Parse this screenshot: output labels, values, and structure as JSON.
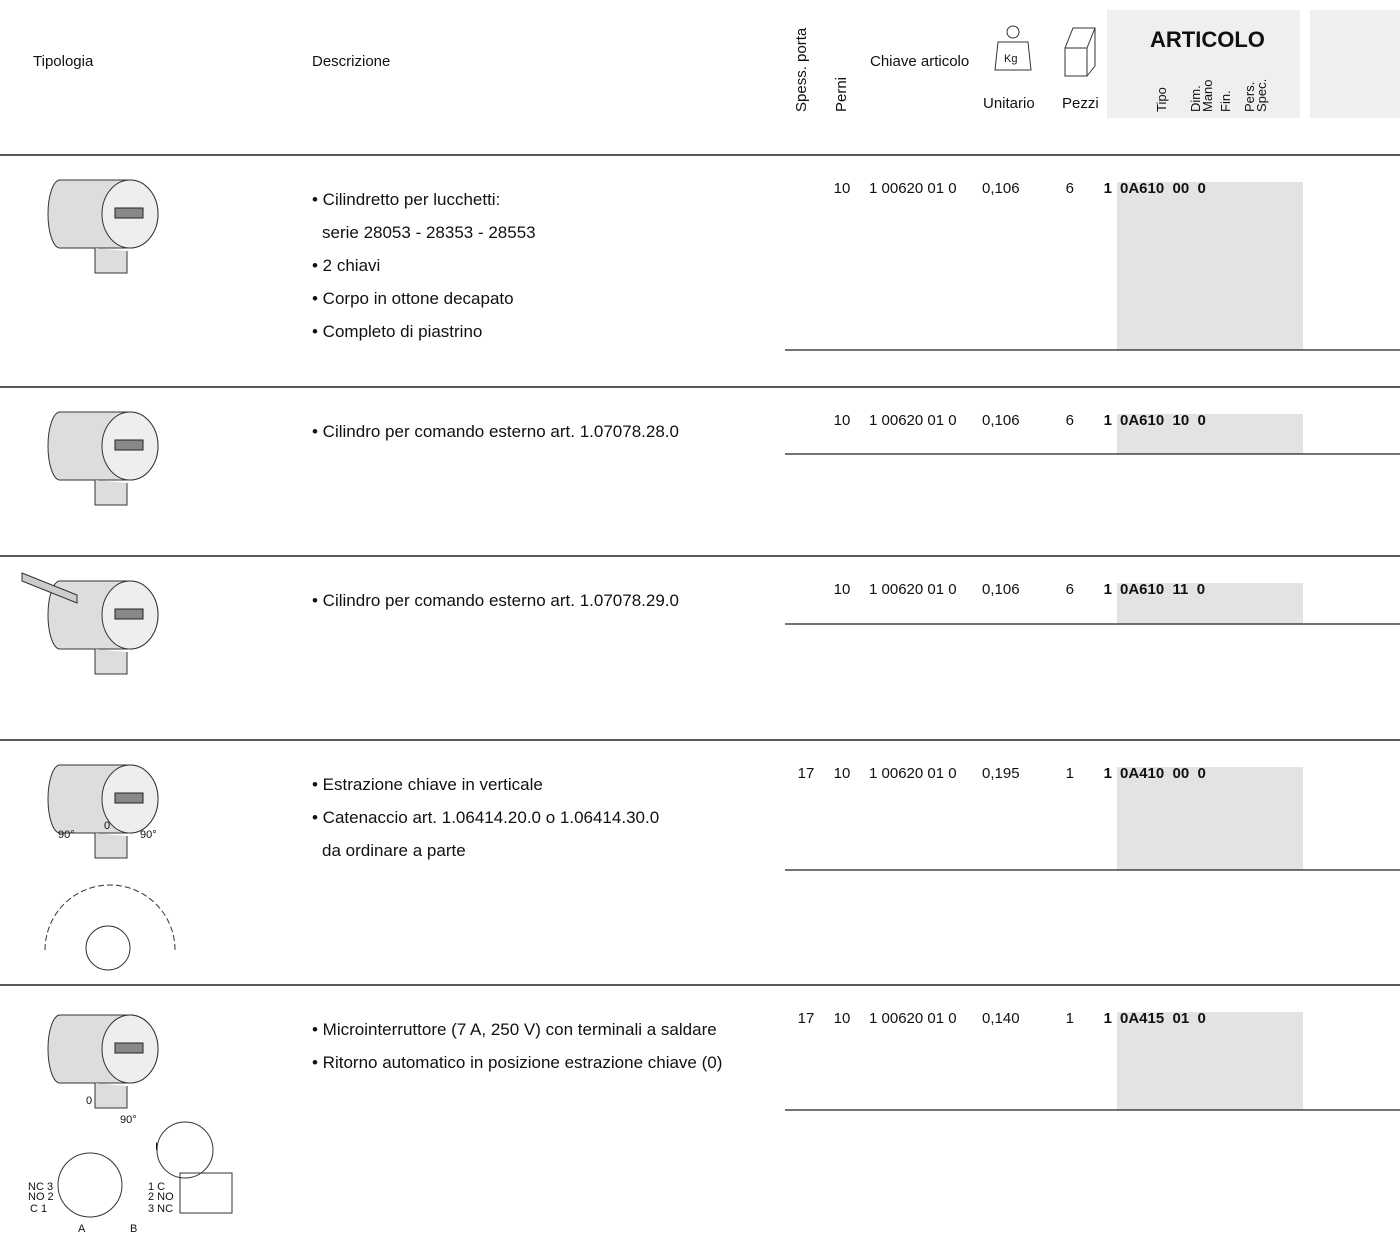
{
  "header": {
    "tipologia": "Tipologia",
    "descrizione": "Descrizione",
    "spess_porta": "Spess. porta",
    "perni": "Perni",
    "chiave_articolo": "Chiave articolo",
    "kg_icon": "Kg",
    "unitario": "Unitario",
    "pezzi": "Pezzi",
    "articolo": "ARTICOLO",
    "tipo": "Tipo",
    "dim": "Dim.",
    "mano": "Mano",
    "fin": "Fin.",
    "pers": "Pers.",
    "spec": "Spec."
  },
  "rows": [
    {
      "description": [
        "• Cilindretto per lucchetti:",
        "serie 28053 - 28353 - 28553",
        "• 2 chiavi",
        "• Corpo in ottone decapato",
        "• Completo di piastrino"
      ],
      "spess_porta": null,
      "perni": "10",
      "chiave_articolo": "1 00620 01 0",
      "unitario": "0,106",
      "pezzi": "6",
      "qty": "1",
      "code": "0A610  00  0",
      "figure_labels": []
    },
    {
      "description": [
        "• Cilindro per comando esterno art. 1.07078.28.0"
      ],
      "spess_porta": null,
      "perni": "10",
      "chiave_articolo": "1 00620 01 0",
      "unitario": "0,106",
      "pezzi": "6",
      "qty": "1",
      "code": "0A610  10  0",
      "figure_labels": []
    },
    {
      "description": [
        "• Cilindro per comando esterno art. 1.07078.29.0"
      ],
      "spess_porta": null,
      "perni": "10",
      "chiave_articolo": "1 00620 01 0",
      "unitario": "0,106",
      "pezzi": "6",
      "qty": "1",
      "code": "0A610  11  0",
      "figure_labels": []
    },
    {
      "description": [
        "• Estrazione chiave in verticale",
        "• Catenaccio art. 1.06414.20.0 o 1.06414.30.0",
        "da ordinare a parte"
      ],
      "spess_porta": "17",
      "perni": "10",
      "chiave_articolo": "1 00620 01 0",
      "unitario": "0,195",
      "pezzi": "1",
      "qty": "1",
      "code": "0A410  00  0",
      "figure_labels": [
        "90°",
        "0",
        "90°"
      ]
    },
    {
      "description": [
        "• Microinterruttore (7 A, 250 V) con terminali a saldare",
        "• Ritorno automatico in posizione estrazione chiave (0)"
      ],
      "spess_porta": "17",
      "perni": "10",
      "chiave_articolo": "1 00620 01 0",
      "unitario": "0,140",
      "pezzi": "1",
      "qty": "1",
      "code": "0A415  01  0",
      "figure_labels": [
        "0",
        "90°",
        "I",
        "NC 3",
        "NO 2",
        "C 1",
        "1 C",
        "2 NO",
        "3 NC",
        "A",
        "B"
      ]
    }
  ]
}
